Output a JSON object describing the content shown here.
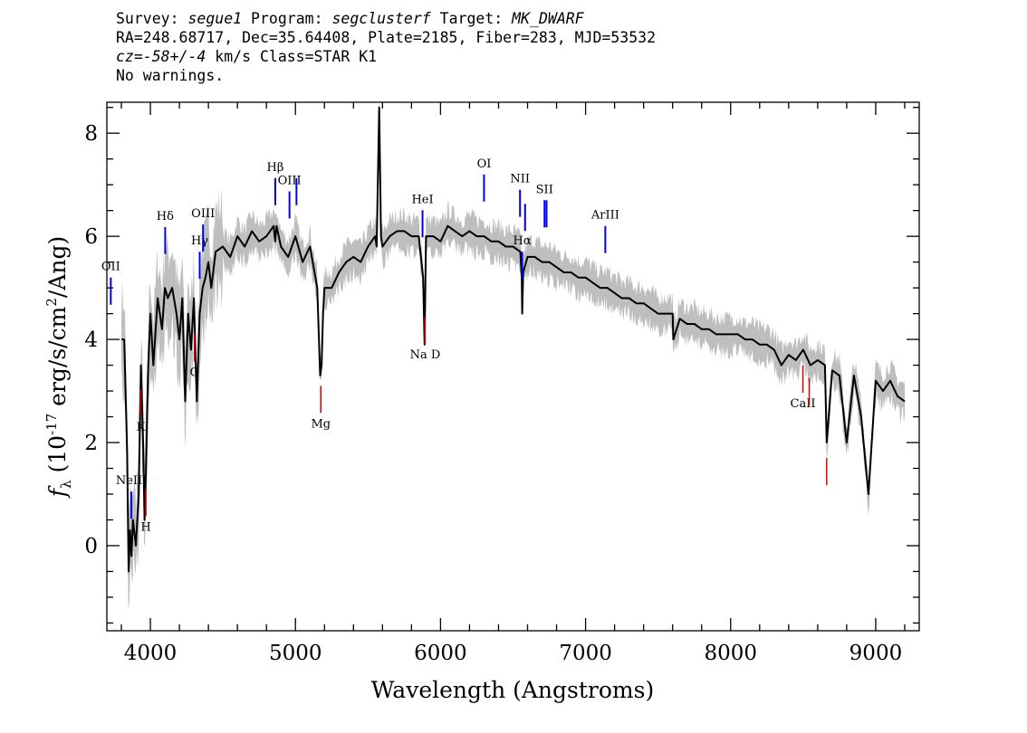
{
  "header": {
    "survey_label": "Survey:",
    "survey": "segue1",
    "program_label": "Program:",
    "program": "segclusterf",
    "target_label": "Target:",
    "target": "MK_DWARF",
    "line2": "RA=248.68717, Dec=35.64408, Plate=2185, Fiber=283, MJD=53532",
    "cz_italic": "cz=-58+/-4",
    "cz_rest": " km/s Class=STAR K1",
    "warnings": "No warnings."
  },
  "colors": {
    "spectrum": "#000000",
    "error_band": "#bebebe",
    "emission_line": "#0000ee",
    "absorption_line": "#dd0000",
    "frame": "#000000"
  },
  "chart_data": {
    "type": "line",
    "xlabel": "Wavelength (Angstroms)",
    "ylabel": "f_λ (10^-17 erg/s/cm^2/Ang)",
    "xlim": [
      3700,
      9300
    ],
    "ylim": [
      -1.65,
      8.6
    ],
    "xticks": [
      4000,
      5000,
      6000,
      7000,
      8000,
      9000
    ],
    "yticks": [
      0,
      2,
      4,
      6,
      8
    ],
    "series": [
      {
        "x": [
          3800,
          3820,
          3840,
          3850,
          3860,
          3870,
          3880,
          3900,
          3920,
          3935,
          3950,
          3960,
          3970,
          3985,
          4000,
          4020,
          4050,
          4080,
          4100,
          4120,
          4150,
          4180,
          4200,
          4220,
          4240,
          4260,
          4280,
          4300,
          4320,
          4340,
          4360,
          4380,
          4400,
          4420,
          4450,
          4500,
          4550,
          4600,
          4650,
          4700,
          4750,
          4800,
          4850,
          4860,
          4870,
          4900,
          4950,
          5000,
          5050,
          5100,
          5150,
          5170,
          5180,
          5190,
          5200,
          5250,
          5300,
          5350,
          5400,
          5450,
          5500,
          5550,
          5560,
          5577,
          5590,
          5600,
          5650,
          5700,
          5750,
          5800,
          5850,
          5880,
          5890,
          5900,
          5950,
          6000,
          6050,
          6100,
          6150,
          6200,
          6250,
          6300,
          6350,
          6400,
          6450,
          6500,
          6550,
          6560,
          6563,
          6570,
          6600,
          6650,
          6700,
          6750,
          6800,
          6850,
          6900,
          6950,
          7000,
          7050,
          7100,
          7150,
          7200,
          7250,
          7300,
          7350,
          7400,
          7450,
          7500,
          7550,
          7600,
          7605,
          7650,
          7700,
          7750,
          7800,
          7850,
          7900,
          7950,
          8000,
          8050,
          8100,
          8150,
          8200,
          8250,
          8300,
          8350,
          8400,
          8450,
          8500,
          8550,
          8600,
          8650,
          8662,
          8700,
          8750,
          8800,
          8850,
          8900,
          8950,
          9000,
          9050,
          9100,
          9150,
          9200
        ],
        "values": [
          4.0,
          4.0,
          1.8,
          -0.5,
          0.3,
          -0.2,
          0.5,
          0.0,
          1.0,
          3.5,
          2.0,
          0.5,
          1.5,
          3.5,
          4.5,
          3.5,
          4.8,
          4.2,
          5.0,
          4.8,
          5.0,
          4.5,
          4.0,
          4.8,
          2.8,
          4.5,
          3.8,
          4.8,
          2.8,
          4.5,
          5.0,
          5.2,
          5.5,
          5.0,
          5.7,
          5.8,
          5.6,
          6.0,
          5.8,
          6.1,
          5.9,
          6.0,
          6.2,
          5.9,
          6.2,
          5.8,
          5.6,
          6.0,
          5.5,
          5.8,
          5.0,
          3.3,
          3.5,
          4.5,
          5.0,
          5.0,
          5.3,
          5.5,
          5.6,
          5.5,
          5.8,
          6.0,
          5.8,
          8.5,
          6.0,
          5.8,
          6.0,
          6.1,
          6.1,
          6.0,
          6.0,
          5.2,
          3.9,
          6.0,
          6.0,
          5.9,
          6.2,
          6.1,
          6.0,
          6.1,
          6.0,
          6.0,
          5.9,
          5.9,
          5.8,
          5.8,
          5.7,
          5.2,
          4.5,
          5.3,
          5.6,
          5.6,
          5.5,
          5.5,
          5.4,
          5.3,
          5.3,
          5.2,
          5.2,
          5.1,
          5.0,
          5.0,
          4.9,
          4.8,
          4.8,
          4.7,
          4.7,
          4.6,
          4.5,
          4.5,
          4.5,
          4.0,
          4.4,
          4.3,
          4.3,
          4.2,
          4.2,
          4.1,
          4.1,
          4.1,
          4.1,
          4.0,
          4.0,
          3.9,
          3.9,
          3.8,
          3.5,
          3.7,
          3.6,
          3.8,
          3.5,
          3.6,
          3.5,
          2.0,
          3.4,
          3.3,
          2.0,
          3.3,
          2.5,
          1.0,
          3.2,
          3.0,
          3.2,
          2.9,
          2.8
        ]
      }
    ],
    "emission_lines": [
      {
        "label": "OII",
        "wave": 3727
      },
      {
        "label": "NeIII",
        "wave": 3869
      },
      {
        "label": "Hδ",
        "wave": 4102
      },
      {
        "label": "Hγ",
        "wave": 4340
      },
      {
        "label": "OIII",
        "wave": 4363
      },
      {
        "label": "Hβ",
        "wave": 4861
      },
      {
        "label": "OIII",
        "wave": 4959
      },
      {
        "label": "OIII",
        "wave": 5007
      },
      {
        "label": "HeI",
        "wave": 5876
      },
      {
        "label": "OI",
        "wave": 6300
      },
      {
        "label": "NII",
        "wave": 6548
      },
      {
        "label": "Hα",
        "wave": 6563
      },
      {
        "label": "NII",
        "wave": 6583
      },
      {
        "label": "SII",
        "wave": 6717
      },
      {
        "label": "SII",
        "wave": 6731
      },
      {
        "label": "ArIII",
        "wave": 7136
      }
    ],
    "absorption_lines": [
      {
        "label": "K",
        "wave": 3934
      },
      {
        "label": "H",
        "wave": 3969
      },
      {
        "label": "G",
        "wave": 4304
      },
      {
        "label": "Mg",
        "wave": 5175
      },
      {
        "label": "Na D",
        "wave": 5894
      },
      {
        "label": "CaII",
        "wave": 8498
      },
      {
        "label": "CaII",
        "wave": 8542
      },
      {
        "label": "CaII",
        "wave": 8662
      }
    ]
  }
}
